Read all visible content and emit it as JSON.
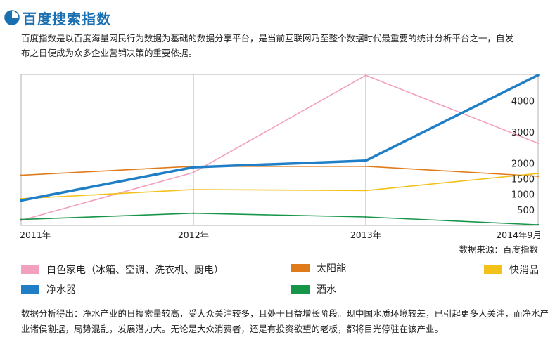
{
  "header": {
    "title": "百度搜索指数",
    "icon": "pie-chart-icon"
  },
  "intro": "百度指数是以百度海量网民行为数据为基础的数据分享平台，是当前互联网乃至整个数据时代最重要的统计分析平台之一，自发布之日便成为众多企业营销决策的重要依据。",
  "source": "数据来源：百度指数",
  "analysis": "数据分析得出：净水产业的日搜索量较高，受大众关注较多，且处于日益增长阶段。现中国水质环境较差，已引起更多人关注，而净水产业诸侯割据，局势混乱，发展潜力大。无论是大众消费者，还是有投资欲望的老板，都将目光停驻在该产业。",
  "chart_data": {
    "type": "line",
    "categories": [
      "2011年",
      "2012年",
      "2013年",
      "2014年9月"
    ],
    "y_ticks": [
      500,
      1000,
      1500,
      2000,
      3000,
      4000
    ],
    "grid": true,
    "legend_position": "bottom",
    "series": [
      {
        "name": "白色家电（冰箱、空调、洗衣机、厨电）",
        "color": "#f2a0bd",
        "values": [
          160,
          1700,
          4820,
          2640
        ]
      },
      {
        "name": "太阳能",
        "color": "#e07b1c",
        "values": [
          1610,
          1900,
          1900,
          1580
        ]
      },
      {
        "name": "快消品",
        "color": "#f2c21a",
        "values": [
          860,
          1150,
          1120,
          1670
        ]
      },
      {
        "name": "净水器",
        "color": "#1f7ec5",
        "values": [
          800,
          1870,
          2080,
          4830
        ]
      },
      {
        "name": "酒水",
        "color": "#17964a",
        "values": [
          190,
          390,
          270,
          20
        ]
      }
    ]
  }
}
